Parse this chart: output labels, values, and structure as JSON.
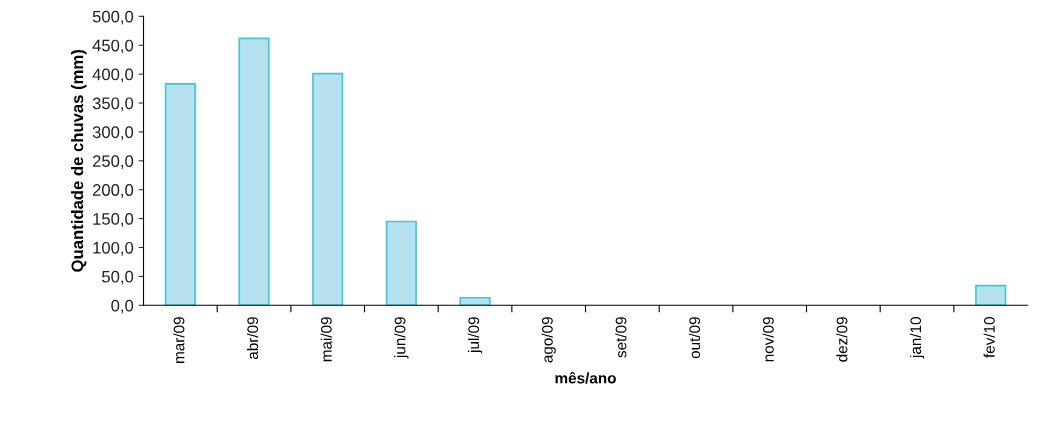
{
  "chart_data": {
    "type": "bar",
    "xlabel": "mês/ano",
    "ylabel": "Quantidade de chuvas (mm)",
    "categories": [
      "mar/09",
      "abr/09",
      "mai/09",
      "jun/09",
      "jul/09",
      "ago/09",
      "set/09",
      "out/09",
      "nov/09",
      "dez/09",
      "jan/10",
      "fev/10"
    ],
    "values": [
      383,
      462,
      401,
      145,
      13,
      0,
      0,
      0,
      0,
      0,
      0,
      34
    ],
    "color": "#b5e2ee",
    "ylim": [
      0,
      500
    ],
    "yticks": [
      {
        "value": 0,
        "label": "0,0"
      },
      {
        "value": 50,
        "label": "50,0"
      },
      {
        "value": 100,
        "label": "100,0"
      },
      {
        "value": 150,
        "label": "150,0"
      },
      {
        "value": 200,
        "label": "200,0"
      },
      {
        "value": 250,
        "label": "250,0"
      },
      {
        "value": 300,
        "label": "300,0"
      },
      {
        "value": 350,
        "label": "350,0"
      },
      {
        "value": 400,
        "label": "400,0"
      },
      {
        "value": 450,
        "label": "450,0"
      },
      {
        "value": 500,
        "label": "500,0"
      }
    ],
    "grid": false
  }
}
